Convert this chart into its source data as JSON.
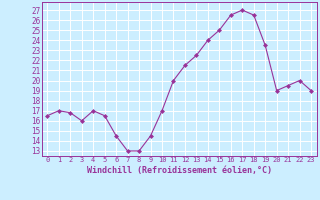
{
  "x": [
    0,
    1,
    2,
    3,
    4,
    5,
    6,
    7,
    8,
    9,
    10,
    11,
    12,
    13,
    14,
    15,
    16,
    17,
    18,
    19,
    20,
    21,
    22,
    23
  ],
  "y": [
    16.5,
    17.0,
    16.8,
    16.0,
    17.0,
    16.5,
    14.5,
    13.0,
    13.0,
    14.5,
    17.0,
    20.0,
    21.5,
    22.5,
    24.0,
    25.0,
    26.5,
    27.0,
    26.5,
    23.5,
    19.0,
    19.5,
    20.0,
    19.0
  ],
  "line_color": "#993399",
  "marker": "D",
  "marker_size": 2.0,
  "bg_color": "#cceeff",
  "grid_color": "#ffffff",
  "xlabel": "Windchill (Refroidissement éolien,°C)",
  "xlabel_color": "#993399",
  "tick_color": "#993399",
  "ylabel_ticks": [
    13,
    14,
    15,
    16,
    17,
    18,
    19,
    20,
    21,
    22,
    23,
    24,
    25,
    26,
    27
  ],
  "ylim": [
    12.5,
    27.8
  ],
  "xlim": [
    -0.5,
    23.5
  ],
  "xtick_fontsize": 5.0,
  "ytick_fontsize": 5.5,
  "xlabel_fontsize": 6.0
}
